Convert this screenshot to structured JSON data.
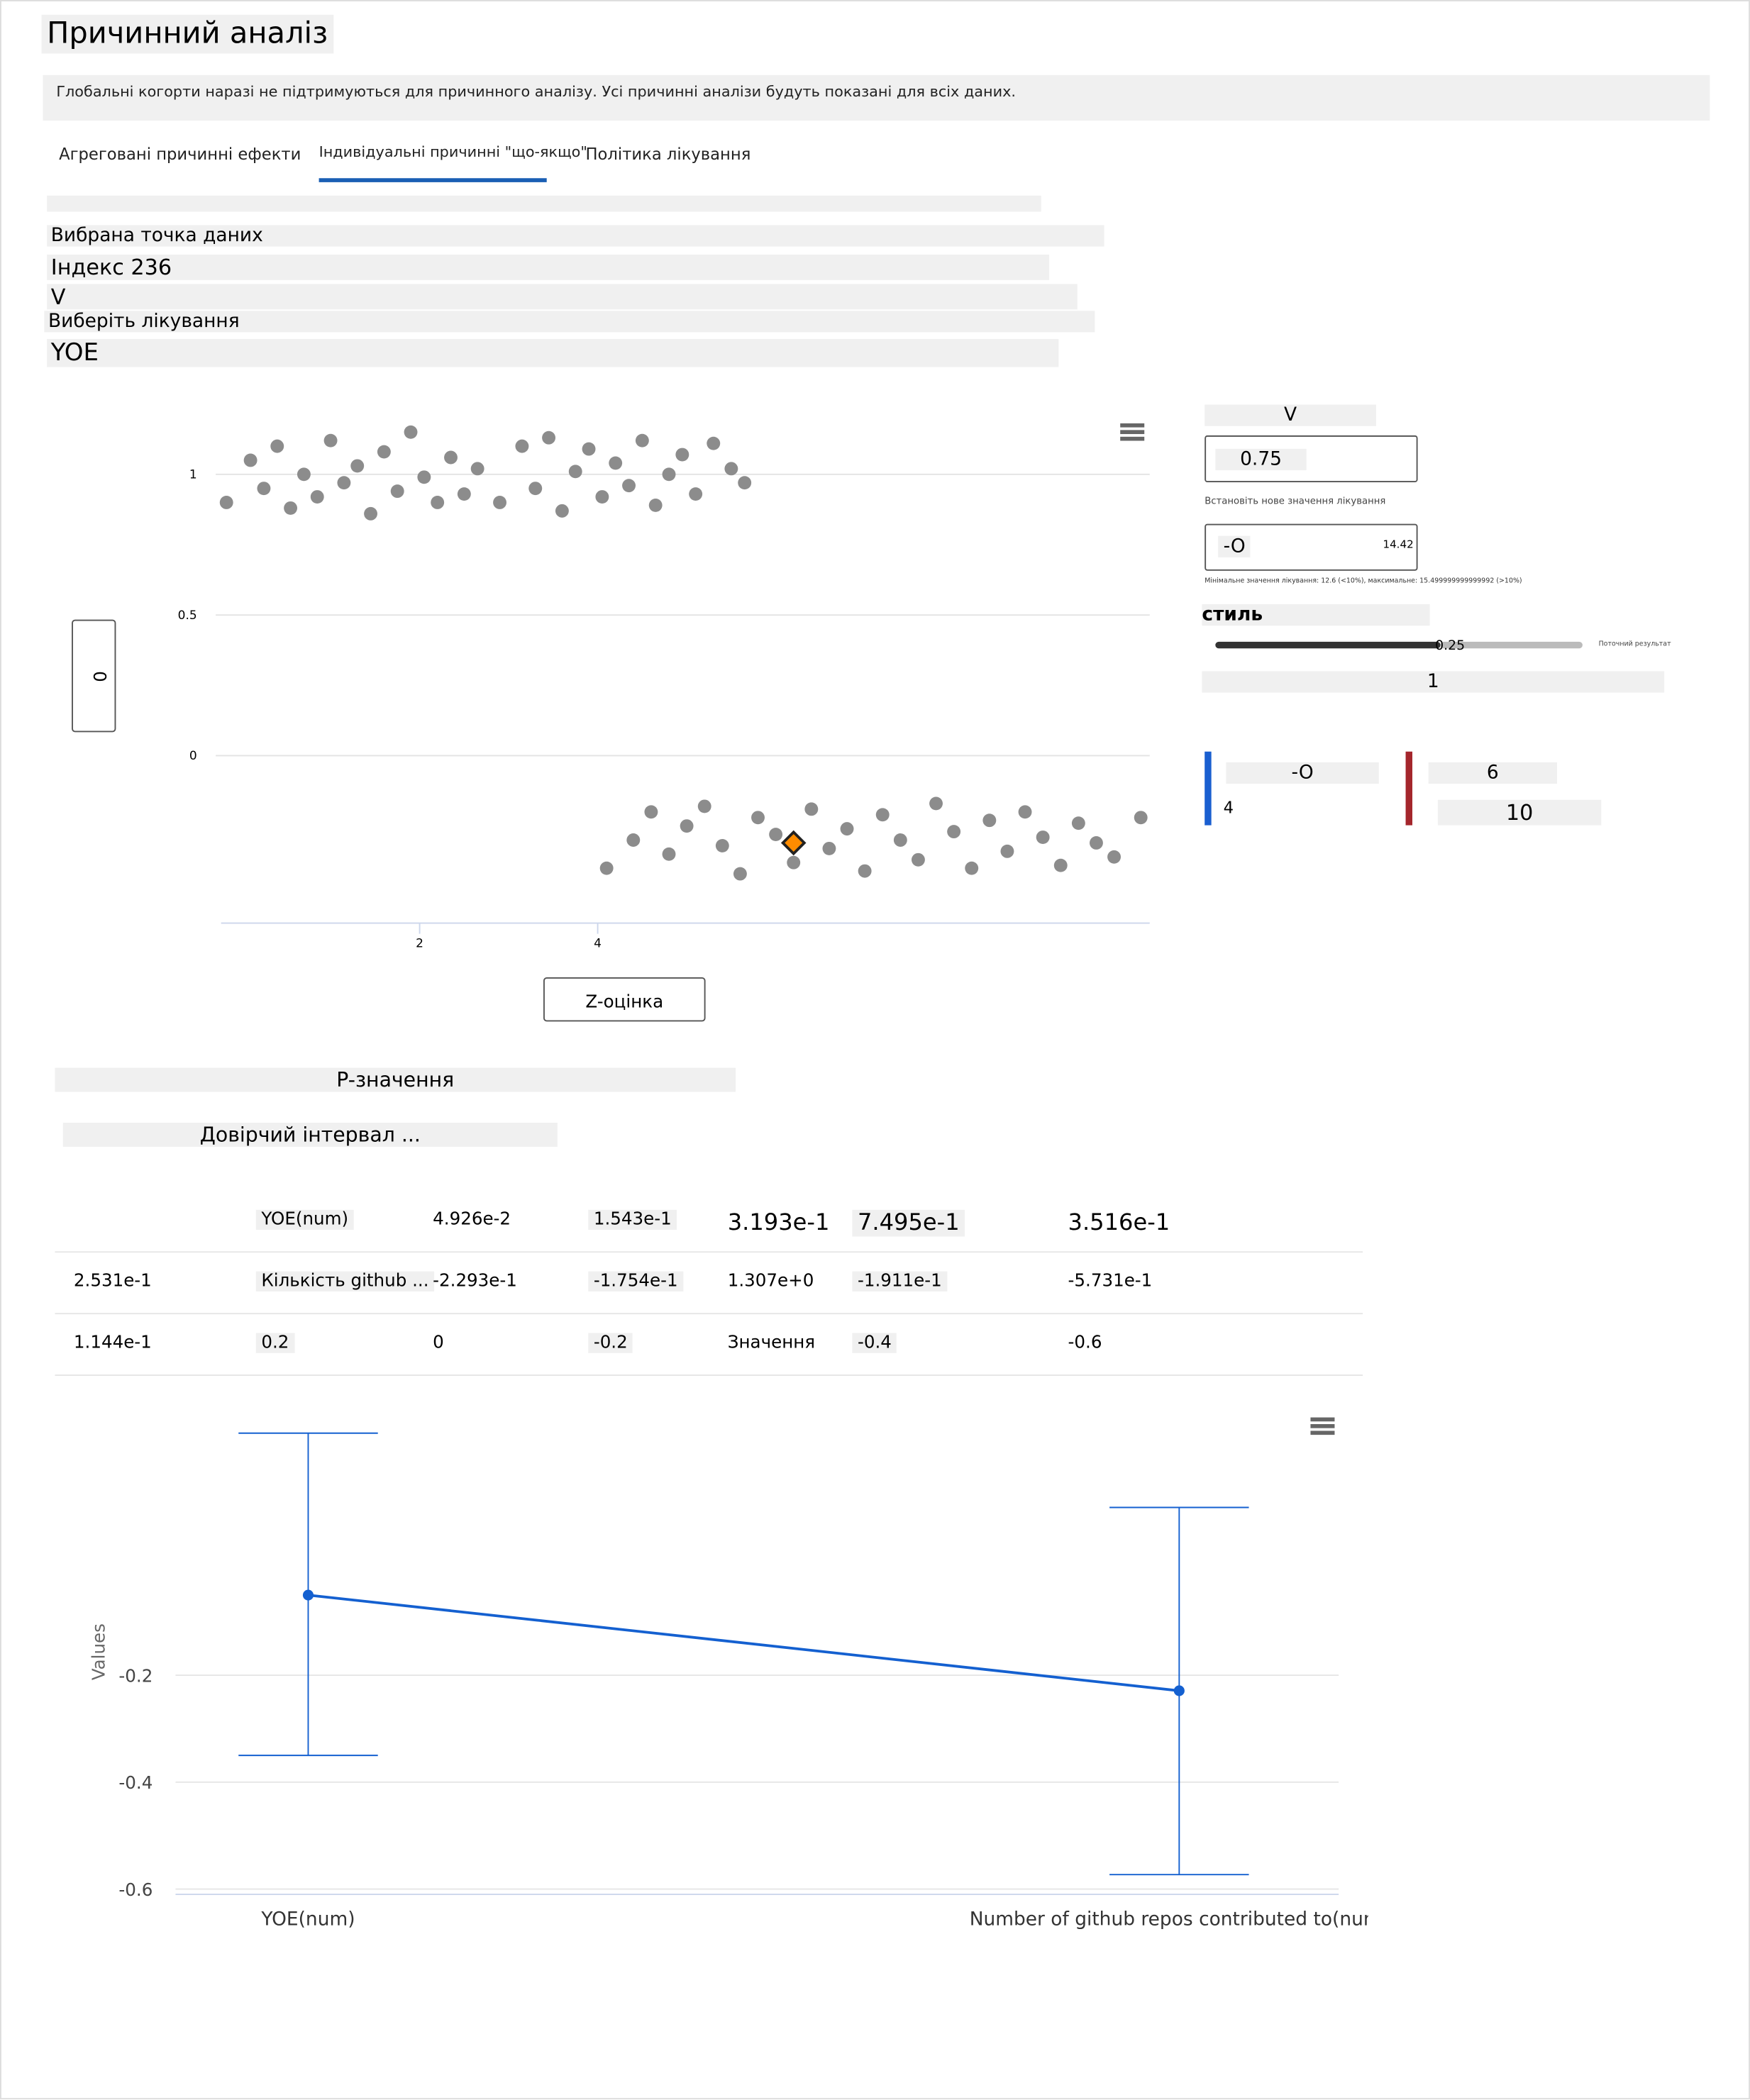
{
  "header": {
    "title": "Причинний аналіз",
    "notice": "Глобальні когорти наразі не підтримуються для причинного аналізу. Усі причинні аналізи будуть показані для всіх даних."
  },
  "tabs": [
    "Агреговані причинні ефекти",
    "Індивідуальні причинні \"що-якщо\"",
    "Політика лікування"
  ],
  "selection": {
    "label": "Вибрана точка даних",
    "index": "Індекс 236",
    "feature": "V",
    "treatment_label": "Виберіть лікування",
    "treatment": "YOE"
  },
  "scatter": {
    "type": "scatter",
    "x_label": "Z-оцінка",
    "y_label": "0",
    "color": "#8c8c8c",
    "x": [
      -0.17,
      0.1,
      0.25,
      0.4,
      0.55,
      0.7,
      0.85,
      1.0,
      1.15,
      1.3,
      1.45,
      1.6,
      1.75,
      1.9,
      2.05,
      2.2,
      2.35,
      2.5,
      2.65,
      2.9,
      3.15,
      3.3,
      3.45,
      3.6,
      3.75,
      3.9,
      4.05,
      4.2,
      4.35,
      4.5,
      4.65,
      4.8,
      4.95,
      5.1,
      5.3,
      5.5,
      5.65,
      4.1,
      4.4,
      4.6,
      4.8,
      5.0,
      5.2,
      5.4,
      5.6,
      5.8,
      6.0,
      6.2,
      6.4,
      6.6,
      6.8,
      7.0,
      7.2,
      7.4,
      7.6,
      7.8,
      8.0,
      8.2,
      8.4,
      8.6,
      8.8,
      9.0,
      9.2,
      9.4,
      9.6,
      9.8,
      10.1
    ],
    "y": [
      0.9,
      1.05,
      0.95,
      1.1,
      0.88,
      1.0,
      0.92,
      1.12,
      0.97,
      1.03,
      0.86,
      1.08,
      0.94,
      1.15,
      0.99,
      0.9,
      1.06,
      0.93,
      1.02,
      0.9,
      1.1,
      0.95,
      1.13,
      0.87,
      1.01,
      1.09,
      0.92,
      1.04,
      0.96,
      1.12,
      0.89,
      1.0,
      1.07,
      0.93,
      1.11,
      1.02,
      0.97,
      -0.4,
      -0.3,
      -0.2,
      -0.35,
      -0.25,
      -0.18,
      -0.32,
      -0.42,
      -0.22,
      -0.28,
      -0.38,
      -0.19,
      -0.33,
      -0.26,
      -0.41,
      -0.21,
      -0.3,
      -0.37,
      -0.17,
      -0.27,
      -0.4,
      -0.23,
      -0.34,
      -0.2,
      -0.29,
      -0.39,
      -0.24,
      -0.31,
      -0.36,
      -0.22
    ],
    "selected": {
      "x": 6.2,
      "y": -0.31,
      "color": "#ff8c00"
    },
    "xlim": [
      -0.23,
      10.2
    ],
    "ylim": [
      -0.595,
      1.205
    ],
    "xticks": [
      2,
      4
    ],
    "yticks": [
      0,
      0.5,
      1
    ]
  },
  "what_if": {
    "feature": "V",
    "current": "0.75",
    "new_label": "Встановіть нове значення лікування",
    "new_value": "-O",
    "max": "14.42",
    "range_note": "Мінімальне значення лікування: 12.6 (<10%), максимальне: 15.499999999999992 (>10%)",
    "style": "стиль",
    "slider": "0.25",
    "slider_note": "Поточний результат",
    "outcome": "1",
    "current_out": "-O",
    "left_small": "4",
    "new_out": "6",
    "new_out2": "10"
  },
  "table": {
    "p_heading": "P-значення",
    "ci_heading": "Довірчий інтервал ...",
    "rows": [
      [
        "",
        "YOE(num)",
        "4.926e-2",
        "1.543e-1",
        "3.193e-1",
        "7.495e-1",
        "3.516e-1"
      ],
      [
        "2.531e-1",
        "Кількість github ...",
        "-2.293e-1",
        "-1.754e-1",
        "1.307e+0",
        "-1.911e-1",
        "-5.731e-1"
      ],
      [
        "1.144e-1",
        "0.2",
        "0",
        "-0.2",
        "Значення",
        "-0.4",
        "-0.6"
      ]
    ]
  },
  "error_chart": {
    "type": "errorbar",
    "y_label": "Values",
    "color": "#1460d0",
    "categories": [
      "YOE(num)",
      "Number of github repos contributed to(num)"
    ],
    "values": [
      -0.05,
      -0.229
    ],
    "lower": [
      -0.35,
      -0.573
    ],
    "upper": [
      0.253,
      0.114
    ],
    "ylim": [
      -0.61,
      0.3
    ],
    "yticks": [
      -0.6,
      -0.4,
      -0.2
    ]
  }
}
